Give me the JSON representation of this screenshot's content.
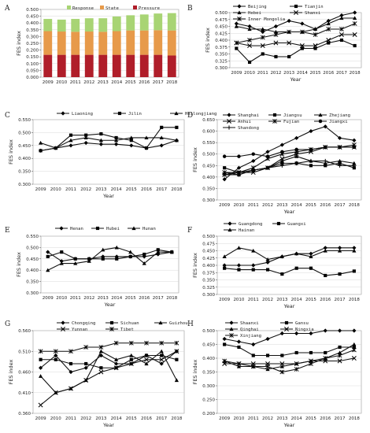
{
  "chart_data": [
    {
      "panel": "A",
      "type": "bar",
      "stacked": true,
      "ylabel": "FES index",
      "xlabel": "",
      "ylim": [
        0,
        0.5
      ],
      "yticks": [
        "0.000",
        "0.050",
        "0.100",
        "0.150",
        "0.200",
        "0.250",
        "0.300",
        "0.350",
        "0.400",
        "0.450",
        "0.500"
      ],
      "categories": [
        "2009",
        "2010",
        "2011",
        "2012",
        "2013",
        "2014",
        "2015",
        "2016",
        "2017",
        "2018"
      ],
      "legend_position": "top",
      "series": [
        {
          "name": "Pressure",
          "color": "#b01e2a",
          "values": [
            0.165,
            0.165,
            0.165,
            0.165,
            0.165,
            0.165,
            0.165,
            0.165,
            0.165,
            0.16
          ]
        },
        {
          "name": "State",
          "color": "#e79a4a",
          "values": [
            0.175,
            0.172,
            0.17,
            0.172,
            0.17,
            0.175,
            0.18,
            0.18,
            0.182,
            0.185
          ]
        },
        {
          "name": "Response",
          "color": "#a8d474",
          "values": [
            0.09,
            0.088,
            0.095,
            0.098,
            0.1,
            0.108,
            0.112,
            0.118,
            0.123,
            0.128
          ]
        }
      ]
    },
    {
      "panel": "B",
      "type": "line",
      "ylabel": "FES index",
      "xlabel": "Year",
      "ylim": [
        0.3,
        0.5
      ],
      "yticks": [
        "0.300",
        "0.325",
        "0.350",
        "0.375",
        "0.400",
        "0.425",
        "0.450",
        "0.475",
        "0.500"
      ],
      "x": [
        "2009",
        "2010",
        "2011",
        "2012",
        "2013",
        "2014",
        "2015",
        "2016",
        "2017",
        "2018"
      ],
      "legend_position": "top",
      "series": [
        {
          "name": "Beijing",
          "marker": "diamond",
          "values": [
            0.46,
            0.45,
            0.43,
            0.45,
            0.47,
            0.46,
            0.44,
            0.47,
            0.49,
            0.5
          ]
        },
        {
          "name": "Tianjin",
          "marker": "square",
          "values": [
            0.37,
            0.32,
            0.35,
            0.34,
            0.34,
            0.37,
            0.37,
            0.39,
            0.4,
            0.38
          ]
        },
        {
          "name": "Hebei",
          "marker": "triangle",
          "values": [
            0.45,
            0.44,
            0.44,
            0.43,
            0.43,
            0.43,
            0.44,
            0.46,
            0.48,
            0.48
          ]
        },
        {
          "name": "Shanxi",
          "marker": "x",
          "values": [
            0.39,
            0.38,
            0.38,
            0.39,
            0.39,
            0.38,
            0.38,
            0.4,
            0.42,
            0.42
          ]
        },
        {
          "name": "Inner Mongolia",
          "marker": "asterisk",
          "values": [
            0.39,
            0.4,
            0.41,
            0.42,
            0.43,
            0.43,
            0.42,
            0.44,
            0.44,
            0.46
          ]
        }
      ]
    },
    {
      "panel": "C",
      "type": "line",
      "ylabel": "FES index",
      "xlabel": "Year",
      "ylim": [
        0.3,
        0.55
      ],
      "yticks": [
        "0.300",
        "0.350",
        "0.400",
        "0.450",
        "0.500",
        "0.550"
      ],
      "x": [
        "2009",
        "2010",
        "2011",
        "2012",
        "2013",
        "2014",
        "2015",
        "2016",
        "2017",
        "2018"
      ],
      "legend_position": "top",
      "series": [
        {
          "name": "Liaoning",
          "marker": "diamond",
          "values": [
            0.43,
            0.44,
            0.45,
            0.46,
            0.455,
            0.455,
            0.45,
            0.44,
            0.45,
            0.47
          ]
        },
        {
          "name": "Jilin",
          "marker": "square",
          "values": [
            0.43,
            0.44,
            0.49,
            0.49,
            0.495,
            0.48,
            0.47,
            0.44,
            0.52,
            0.52
          ]
        },
        {
          "name": "Heilongjiang",
          "marker": "triangle",
          "values": [
            0.46,
            0.44,
            0.47,
            0.48,
            0.47,
            0.47,
            0.48,
            0.48,
            0.48,
            0.47
          ]
        }
      ]
    },
    {
      "panel": "D",
      "type": "line",
      "ylabel": "FES index",
      "xlabel": "Year",
      "ylim": [
        0.3,
        0.65
      ],
      "yticks": [
        "0.300",
        "0.350",
        "0.400",
        "0.450",
        "0.500",
        "0.550",
        "0.600",
        "0.650"
      ],
      "x": [
        "2009",
        "2010",
        "2011",
        "2012",
        "2013",
        "2014",
        "2015",
        "2016",
        "2017",
        "2018"
      ],
      "legend_position": "top",
      "series": [
        {
          "name": "Shanghai",
          "marker": "diamond",
          "values": [
            0.39,
            0.44,
            0.47,
            0.51,
            0.54,
            0.57,
            0.6,
            0.62,
            0.57,
            0.56
          ]
        },
        {
          "name": "Jiangsu",
          "marker": "square",
          "values": [
            0.44,
            0.42,
            0.43,
            0.44,
            0.46,
            0.46,
            0.45,
            0.45,
            0.46,
            0.44
          ]
        },
        {
          "name": "Zhejiang",
          "marker": "triangle",
          "values": [
            0.42,
            0.41,
            0.43,
            0.44,
            0.47,
            0.49,
            0.47,
            0.46,
            0.47,
            0.46
          ]
        },
        {
          "name": "Anhui",
          "marker": "x",
          "values": [
            0.41,
            0.42,
            0.42,
            0.44,
            0.48,
            0.5,
            0.51,
            0.53,
            0.53,
            0.53
          ]
        },
        {
          "name": "Fujian",
          "marker": "asterisk",
          "values": [
            0.42,
            0.42,
            0.44,
            0.48,
            0.5,
            0.51,
            0.52,
            0.53,
            0.53,
            0.54
          ]
        },
        {
          "name": "Jiangxi",
          "marker": "circle",
          "values": [
            0.49,
            0.49,
            0.5,
            0.49,
            0.51,
            0.52,
            0.52,
            0.53,
            0.53,
            0.53
          ]
        },
        {
          "name": "Shandong",
          "marker": "plus",
          "values": [
            0.41,
            0.41,
            0.43,
            0.44,
            0.45,
            0.46,
            0.47,
            0.47,
            0.45,
            0.45
          ]
        }
      ]
    },
    {
      "panel": "E",
      "type": "line",
      "ylabel": "FES index",
      "xlabel": "Year",
      "ylim": [
        0.3,
        0.55
      ],
      "yticks": [
        "0.300",
        "0.350",
        "0.400",
        "0.450",
        "0.500",
        "0.550"
      ],
      "x": [
        "2009",
        "2010",
        "2011",
        "2012",
        "2013",
        "2014",
        "2015",
        "2016",
        "2017",
        "2018"
      ],
      "legend_position": "top",
      "series": [
        {
          "name": "Henan",
          "marker": "diamond",
          "values": [
            0.48,
            0.44,
            0.45,
            0.45,
            0.46,
            0.46,
            0.46,
            0.46,
            0.47,
            0.48
          ]
        },
        {
          "name": "Hubei",
          "marker": "square",
          "values": [
            0.46,
            0.48,
            0.45,
            0.45,
            0.45,
            0.45,
            0.46,
            0.47,
            0.49,
            0.48
          ]
        },
        {
          "name": "Hunan",
          "marker": "triangle",
          "values": [
            0.4,
            0.43,
            0.43,
            0.44,
            0.49,
            0.5,
            0.48,
            0.43,
            0.48,
            0.48
          ]
        }
      ]
    },
    {
      "panel": "F",
      "type": "line",
      "ylabel": "FES index",
      "xlabel": "Year",
      "ylim": [
        0.3,
        0.5
      ],
      "yticks": [
        "0.300",
        "0.325",
        "0.350",
        "0.375",
        "0.400",
        "0.425",
        "0.450",
        "0.475",
        "0.500"
      ],
      "x": [
        "2009",
        "2010",
        "2011",
        "2012",
        "2013",
        "2014",
        "2015",
        "2016",
        "2017",
        "2018"
      ],
      "legend_position": "top",
      "series": [
        {
          "name": "Guangdong",
          "marker": "diamond",
          "values": [
            0.4,
            0.4,
            0.4,
            0.41,
            0.43,
            0.44,
            0.44,
            0.46,
            0.46,
            0.46
          ]
        },
        {
          "name": "Guangxi",
          "marker": "square",
          "values": [
            0.39,
            0.385,
            0.385,
            0.385,
            0.37,
            0.39,
            0.39,
            0.365,
            0.37,
            0.38
          ]
        },
        {
          "name": "Hainan",
          "marker": "triangle",
          "values": [
            0.43,
            0.46,
            0.45,
            0.42,
            0.43,
            0.44,
            0.43,
            0.45,
            0.45,
            0.45
          ]
        }
      ]
    },
    {
      "panel": "G",
      "type": "line",
      "ylabel": "FES index",
      "xlabel": "Year",
      "ylim": [
        0.36,
        0.56
      ],
      "yticks": [
        "0.360",
        "0.410",
        "0.460",
        "0.510",
        "0.560"
      ],
      "x": [
        "2009",
        "2010",
        "2011",
        "2012",
        "2013",
        "2014",
        "2015",
        "2016",
        "2017",
        "2018"
      ],
      "legend_position": "top",
      "series": [
        {
          "name": "Chongqing",
          "marker": "diamond",
          "values": [
            0.47,
            0.5,
            0.46,
            0.47,
            0.5,
            0.48,
            0.48,
            0.5,
            0.48,
            0.51
          ]
        },
        {
          "name": "Sichuan",
          "marker": "square",
          "values": [
            0.49,
            0.49,
            0.48,
            0.48,
            0.47,
            0.47,
            0.49,
            0.5,
            0.5,
            0.49
          ]
        },
        {
          "name": "Guizhou",
          "marker": "triangle",
          "values": [
            0.45,
            0.41,
            0.42,
            0.44,
            0.51,
            0.49,
            0.5,
            0.48,
            0.51,
            0.44
          ]
        },
        {
          "name": "Yunnan",
          "marker": "x",
          "values": [
            0.38,
            0.41,
            0.42,
            0.44,
            0.46,
            0.47,
            0.48,
            0.49,
            0.49,
            0.51
          ]
        },
        {
          "name": "Tibet",
          "marker": "asterisk",
          "values": [
            0.51,
            0.51,
            0.51,
            0.52,
            0.52,
            0.53,
            0.53,
            0.53,
            0.53,
            0.53
          ]
        }
      ]
    },
    {
      "panel": "H",
      "type": "line",
      "ylabel": "FES index",
      "xlabel": "Year",
      "ylim": [
        0.2,
        0.5
      ],
      "yticks": [
        "0.200",
        "0.250",
        "0.300",
        "0.350",
        "0.400",
        "0.450",
        "0.500"
      ],
      "x": [
        "2009",
        "2010",
        "2011",
        "2012",
        "2013",
        "2014",
        "2015",
        "2016",
        "2017",
        "2018"
      ],
      "legend_position": "top",
      "series": [
        {
          "name": "Shaanxi",
          "marker": "diamond",
          "values": [
            0.47,
            0.46,
            0.45,
            0.47,
            0.49,
            0.49,
            0.49,
            0.5,
            0.5,
            0.5
          ]
        },
        {
          "name": "Gansu",
          "marker": "square",
          "values": [
            0.45,
            0.44,
            0.41,
            0.41,
            0.41,
            0.42,
            0.42,
            0.42,
            0.44,
            0.44
          ]
        },
        {
          "name": "Qinghai",
          "marker": "triangle",
          "values": [
            0.39,
            0.37,
            0.37,
            0.36,
            0.37,
            0.38,
            0.39,
            0.4,
            0.42,
            0.45
          ]
        },
        {
          "name": "Ningxia",
          "marker": "x",
          "values": [
            0.38,
            0.38,
            0.38,
            0.38,
            0.38,
            0.38,
            0.39,
            0.39,
            0.39,
            0.4
          ]
        },
        {
          "name": "Xinjiang",
          "marker": "asterisk",
          "values": [
            0.39,
            0.38,
            0.37,
            0.37,
            0.35,
            0.36,
            0.38,
            0.4,
            0.41,
            0.43
          ]
        }
      ]
    }
  ]
}
